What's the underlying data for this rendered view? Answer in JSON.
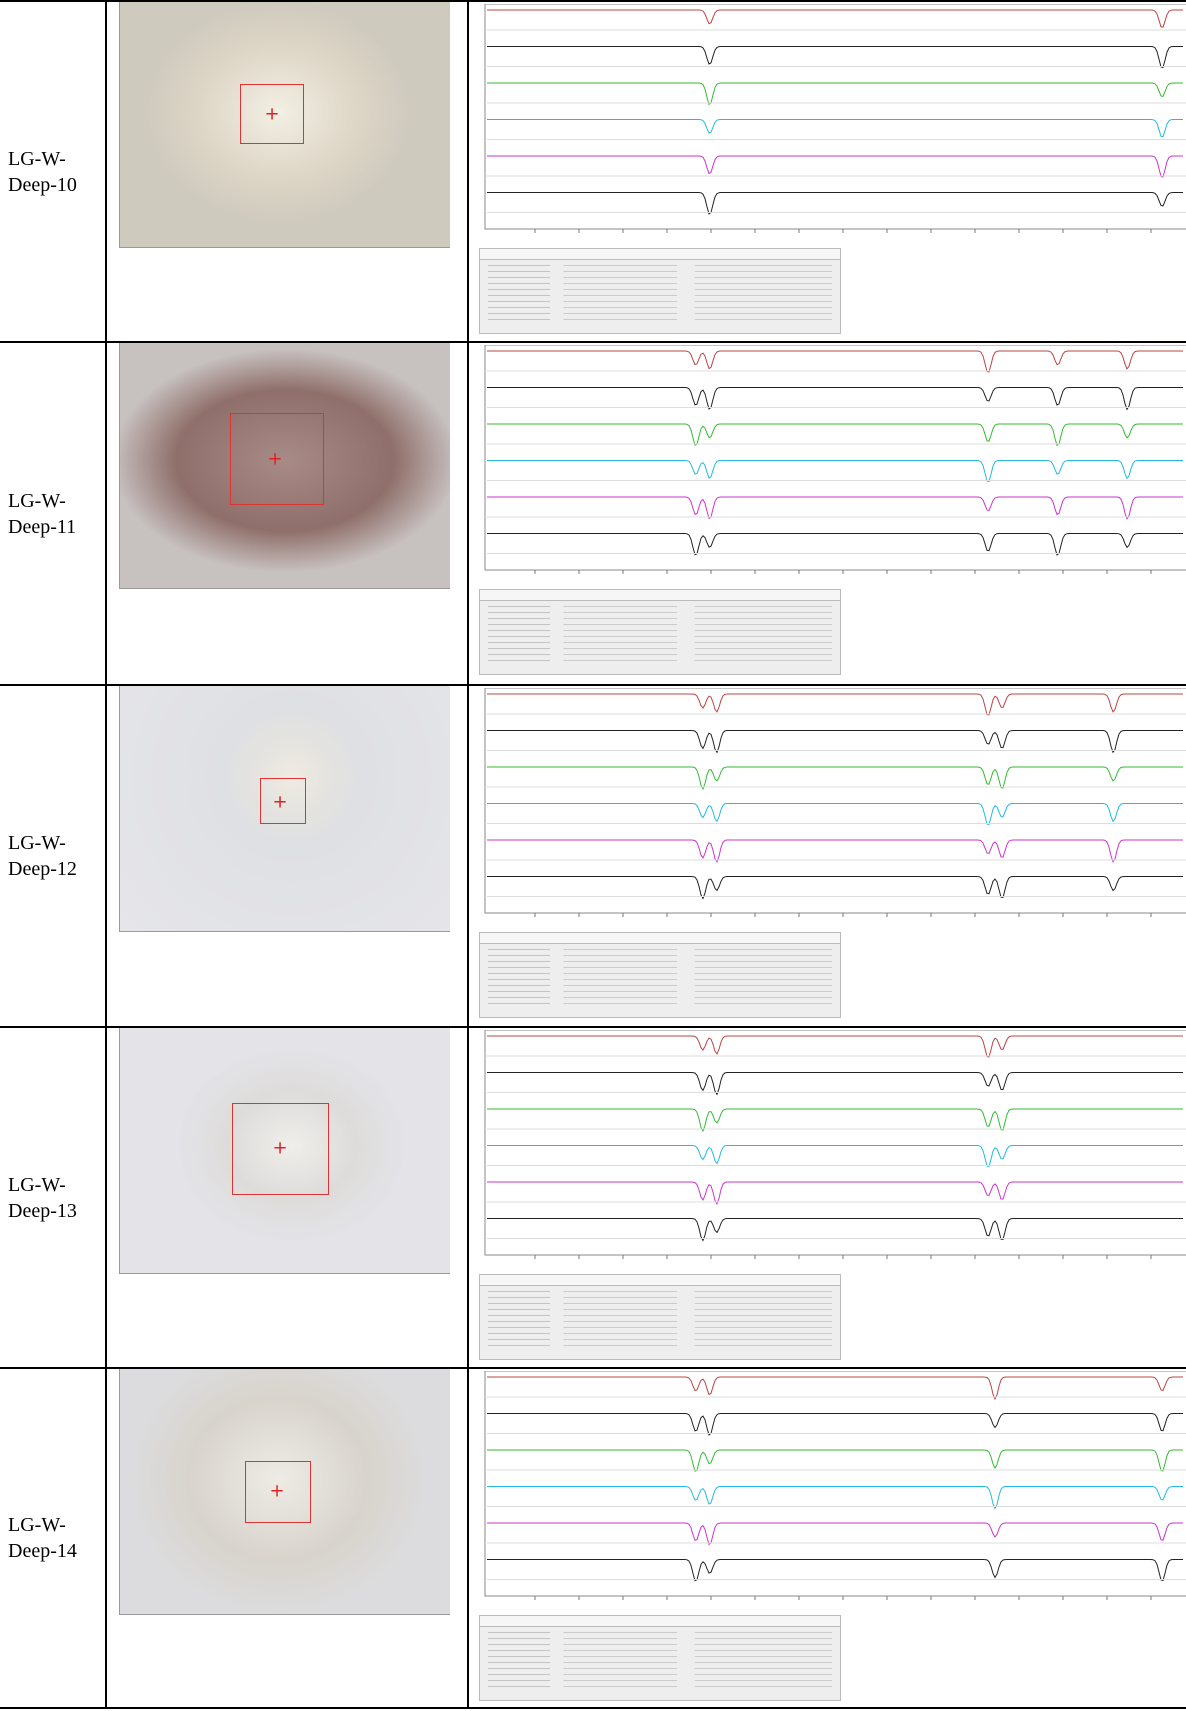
{
  "table": {
    "rows": [
      {
        "label": "LG-W-Deep-10"
      },
      {
        "label": "LG-W-Deep-11"
      },
      {
        "label": "LG-W-Deep-12"
      },
      {
        "label": "LG-W-Deep-13"
      },
      {
        "label": "LG-W-Deep-14"
      }
    ]
  }
}
